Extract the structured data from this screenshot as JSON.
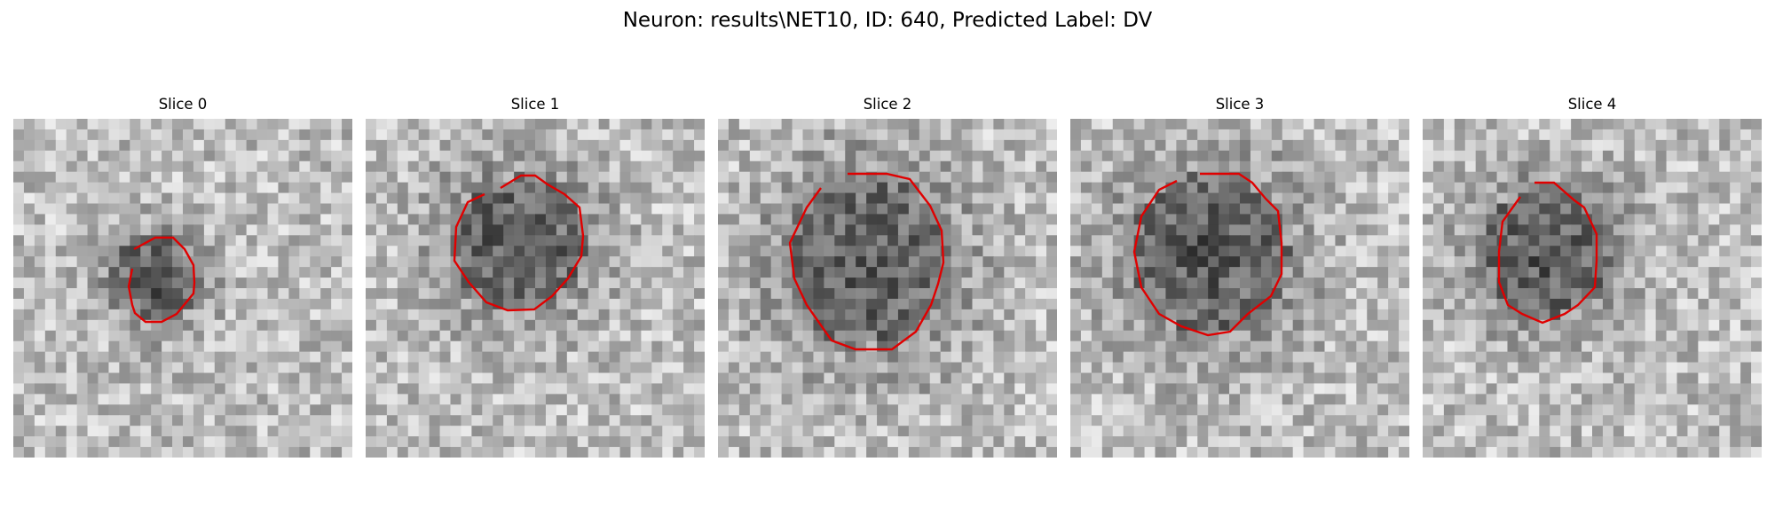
{
  "figure": {
    "title": "Neuron: results\\NET10, ID: 640, Predicted Label: DV"
  },
  "panels": [
    {
      "title": "Slice 0"
    },
    {
      "title": "Slice 1"
    },
    {
      "title": "Slice 2"
    },
    {
      "title": "Slice 3"
    },
    {
      "title": "Slice 4"
    }
  ],
  "colors": {
    "contour": "#e00000",
    "background": "#ffffff",
    "colormap": "gray"
  }
}
